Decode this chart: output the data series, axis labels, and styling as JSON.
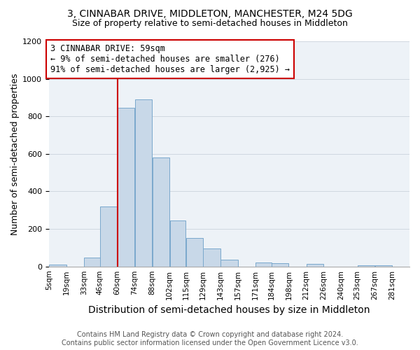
{
  "title": "3, CINNABAR DRIVE, MIDDLETON, MANCHESTER, M24 5DG",
  "subtitle": "Size of property relative to semi-detached houses in Middleton",
  "xlabel": "Distribution of semi-detached houses by size in Middleton",
  "ylabel": "Number of semi-detached properties",
  "footer_line1": "Contains HM Land Registry data © Crown copyright and database right 2024.",
  "footer_line2": "Contains public sector information licensed under the Open Government Licence v3.0.",
  "annotation_line1": "3 CINNABAR DRIVE: 59sqm",
  "annotation_line2": "← 9% of semi-detached houses are smaller (276)",
  "annotation_line3": "91% of semi-detached houses are larger (2,925) →",
  "bar_left_edges": [
    5,
    19,
    33,
    46,
    60,
    74,
    88,
    102,
    115,
    129,
    143,
    157,
    171,
    184,
    198,
    212,
    226,
    240,
    253,
    267
  ],
  "bar_widths": [
    14,
    14,
    13,
    14,
    14,
    14,
    14,
    13,
    14,
    14,
    14,
    14,
    13,
    14,
    14,
    14,
    14,
    13,
    14,
    14
  ],
  "bar_heights": [
    10,
    0,
    48,
    320,
    845,
    890,
    580,
    245,
    153,
    97,
    37,
    0,
    22,
    17,
    0,
    12,
    0,
    0,
    7,
    5
  ],
  "bar_color": "#c8d8e8",
  "bar_edge_color": "#7aa8cc",
  "vline_x": 60,
  "vline_color": "#cc0000",
  "annotation_box_color": "#cc0000",
  "ylim": [
    0,
    1200
  ],
  "yticks": [
    0,
    200,
    400,
    600,
    800,
    1000,
    1200
  ],
  "x_tick_labels": [
    "5sqm",
    "19sqm",
    "33sqm",
    "46sqm",
    "60sqm",
    "74sqm",
    "88sqm",
    "102sqm",
    "115sqm",
    "129sqm",
    "143sqm",
    "157sqm",
    "171sqm",
    "184sqm",
    "198sqm",
    "212sqm",
    "226sqm",
    "240sqm",
    "253sqm",
    "267sqm",
    "281sqm"
  ],
  "grid_color": "#d0d8e0",
  "background_color": "#edf2f7",
  "title_fontsize": 10,
  "subtitle_fontsize": 9,
  "axis_label_fontsize": 9,
  "tick_fontsize": 7.5,
  "annotation_fontsize": 8.5,
  "footer_fontsize": 7
}
